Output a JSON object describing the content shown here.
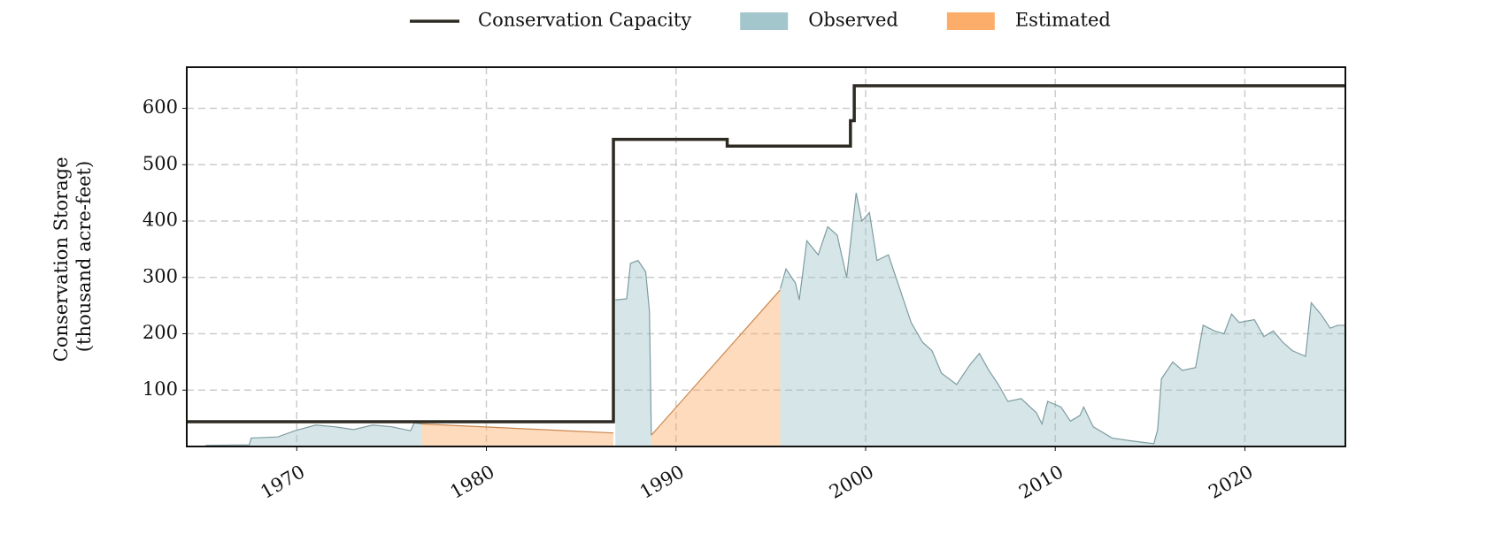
{
  "chart_data": {
    "type": "area",
    "ylabel": [
      "Conservation Storage",
      "(thousand acre-feet)"
    ],
    "xlim": [
      1964.2,
      2025.3
    ],
    "xticks": [
      1970,
      1980,
      1990,
      2000,
      2010,
      2020
    ],
    "ylim": [
      0,
      673
    ],
    "yticks": [
      100,
      200,
      300,
      400,
      500,
      600
    ],
    "grid": true,
    "legend": "top",
    "series": [
      {
        "name": "Observed",
        "color": "#9dc3c8",
        "kind": "area",
        "x": [
          1965.2,
          1967.5,
          1967.6,
          1969,
          1969.9,
          1971,
          1972,
          1973,
          1974,
          1975,
          1976,
          1976.2,
          1976.6,
          1982,
          1986.8,
          1987.4,
          1987.6,
          1988,
          1988.4,
          1988.6,
          1988.7,
          1992,
          1995.5,
          1995.8,
          1996.3,
          1996.5,
          1996.9,
          1997.5,
          1998,
          1998.5,
          1999,
          1999.5,
          1999.8,
          2000.2,
          2000.6,
          2001.2,
          2001.6,
          2002.4,
          2003,
          2003.5,
          2004,
          2004.8,
          2005.5,
          2006,
          2006.5,
          2007,
          2007.5,
          2008.2,
          2009,
          2009.3,
          2009.6,
          2010.3,
          2010.8,
          2011.3,
          2011.5,
          2012,
          2013,
          2014,
          2015.2,
          2015.4,
          2015.6,
          2016.2,
          2016.7,
          2017.4,
          2017.8,
          2018.4,
          2018.9,
          2019.3,
          2019.7,
          2020.5,
          2021,
          2021.5,
          2022,
          2022.5,
          2023.2,
          2023.5,
          2024,
          2024.5,
          2024.9,
          2025.3
        ],
        "values": [
          2,
          3,
          15,
          17,
          28,
          38,
          35,
          30,
          38,
          35,
          28,
          42,
          40,
          null,
          260,
          262,
          325,
          330,
          310,
          240,
          20,
          null,
          280,
          315,
          290,
          260,
          365,
          340,
          390,
          375,
          300,
          450,
          400,
          415,
          330,
          340,
          300,
          220,
          185,
          170,
          130,
          110,
          145,
          165,
          135,
          110,
          80,
          85,
          60,
          40,
          80,
          70,
          45,
          55,
          70,
          35,
          15,
          10,
          5,
          30,
          120,
          150,
          135,
          140,
          215,
          205,
          200,
          235,
          220,
          225,
          195,
          205,
          185,
          170,
          160,
          255,
          235,
          210,
          215,
          215
        ]
      },
      {
        "name": "Estimated",
        "color": "#fda962",
        "kind": "area",
        "x": [
          1976.6,
          1986.7,
          1987.5,
          1988.7,
          1995.5
        ],
        "values": [
          40,
          24,
          null,
          20,
          278
        ]
      },
      {
        "name": "Conservation Capacity",
        "color": "#2d2a22",
        "kind": "line",
        "x": [
          1964.2,
          1986.7,
          1986.7,
          1992.7,
          1992.7,
          1999.2,
          1999.2,
          1999.4,
          1999.4,
          2025.3
        ],
        "values": [
          44,
          44,
          545,
          545,
          533,
          533,
          578,
          578,
          640,
          640
        ]
      }
    ]
  }
}
